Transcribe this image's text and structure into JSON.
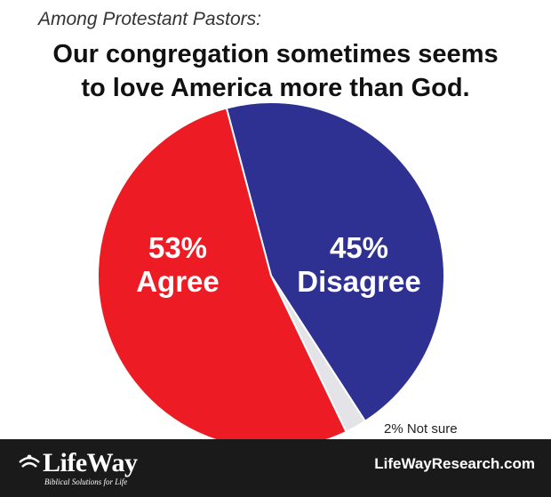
{
  "header": {
    "subtitle": "Among Protestant Pastors:",
    "title_line1": "Our congregation sometimes seems",
    "title_line2": "to love America more than God."
  },
  "chart_data": {
    "type": "pie",
    "title": "Our congregation sometimes seems to love America more than God.",
    "subtitle": "Among Protestant Pastors:",
    "slices": [
      {
        "label": "Agree",
        "value": 53,
        "value_label": "53%",
        "color": "#ed1c24"
      },
      {
        "label": "Disagree",
        "value": 45,
        "value_label": "45%",
        "color": "#2e3192"
      },
      {
        "label": "Not sure",
        "value": 2,
        "value_label": "2% Not sure",
        "color": "#e3e3e8"
      }
    ]
  },
  "footer": {
    "brand": "LifeWay",
    "tagline": "Biblical Solutions for Life",
    "website": "LifeWayResearch.com",
    "background": "#1a1a1a"
  }
}
